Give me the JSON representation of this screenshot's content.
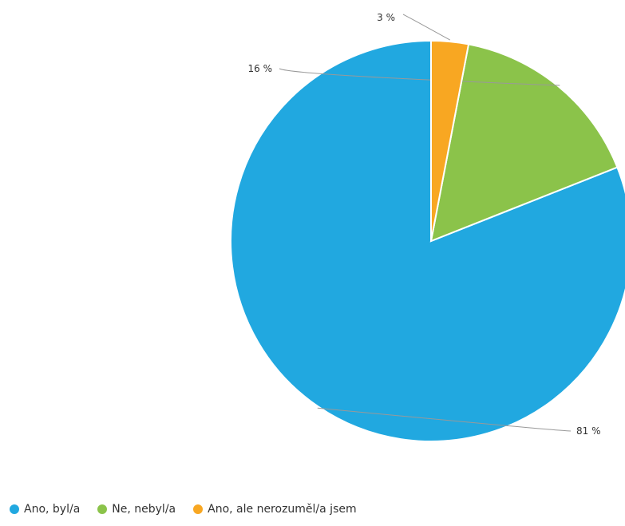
{
  "chart_data": {
    "type": "pie",
    "title": "",
    "slices": [
      {
        "label": "Ano, byl/a",
        "value": 81,
        "value_label": "81 %",
        "color": "#21a8e0"
      },
      {
        "label": "Ne, nebyl/a",
        "value": 16,
        "value_label": "16 %",
        "color": "#8bc34a"
      },
      {
        "label": "Ano, ale nerozuměl/a jsem",
        "value": 3,
        "value_label": "3 %",
        "color": "#f8a722"
      }
    ],
    "start_angle": "12 o'clock, counterclockwise",
    "legend_position": "bottom-left"
  }
}
